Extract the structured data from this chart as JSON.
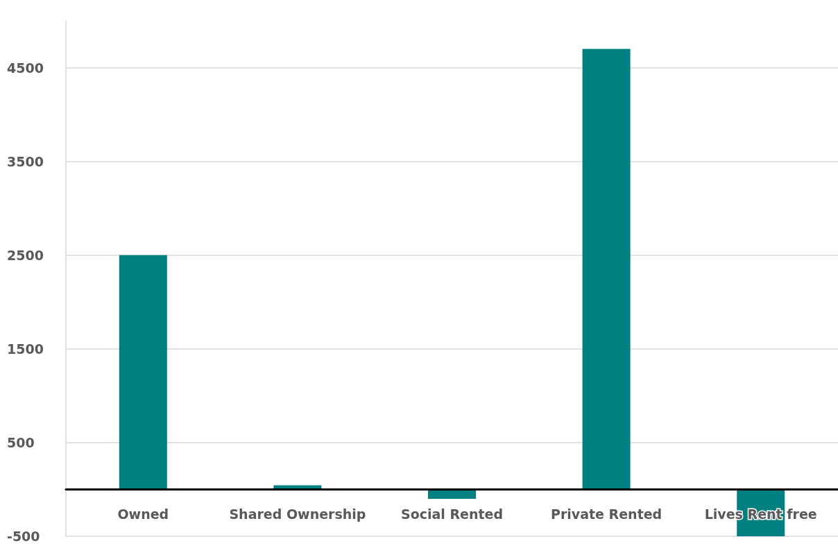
{
  "chart_data": {
    "type": "bar",
    "categories": [
      "Owned",
      "Shared Ownership",
      "Social Rented",
      "Private Rented",
      "Lives Rent free"
    ],
    "values": [
      2500,
      45,
      -100,
      4700,
      -500
    ],
    "color": "#008080",
    "ylim": [
      -500,
      5000
    ],
    "yticks": [
      -500,
      500,
      1500,
      2500,
      3500,
      4500
    ],
    "grid": "y"
  }
}
